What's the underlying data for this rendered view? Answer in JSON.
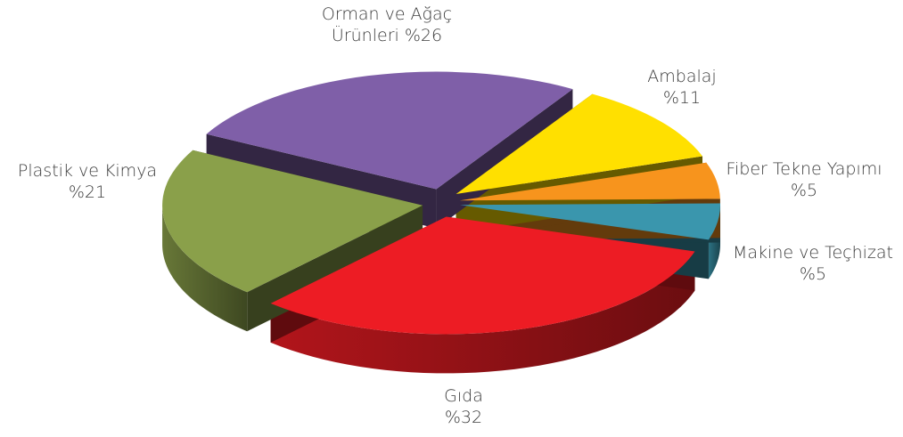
{
  "chart_data": {
    "type": "pie",
    "categories": [
      "Gıda",
      "Makine ve Teçhizat",
      "Fiber Tekne Yapımı",
      "Ambalaj",
      "Orman ve Ağaç Ürünleri",
      "Plastik ve Kimya"
    ],
    "values": [
      32,
      5,
      5,
      11,
      26,
      21
    ],
    "value_labels": [
      "%32",
      "%5",
      "%5",
      "%11",
      "%26",
      "%21"
    ],
    "colors": [
      "#ed1c24",
      "#3a96ad",
      "#f7941d",
      "#ffe000",
      "#7f5fa8",
      "#8aa04a"
    ]
  }
}
